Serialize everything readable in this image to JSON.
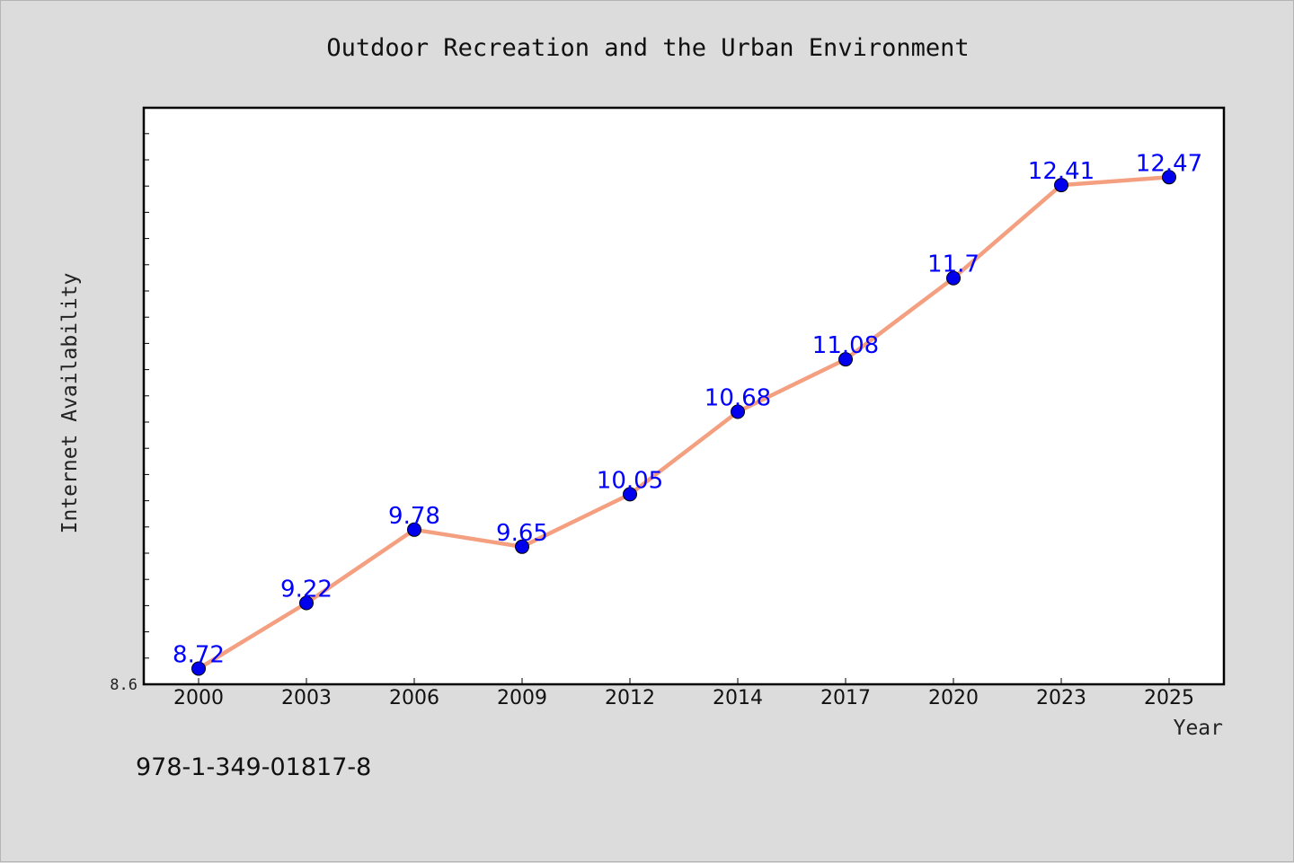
{
  "chart_data": {
    "type": "line",
    "title": "Outdoor Recreation and the Urban Environment",
    "xlabel": "Year",
    "ylabel": "Internet Availability",
    "categories": [
      "2000",
      "2003",
      "2006",
      "2009",
      "2012",
      "2014",
      "2017",
      "2020",
      "2023",
      "2025"
    ],
    "series": [
      {
        "values": [
          8.72,
          9.22,
          9.78,
          9.65,
          10.05,
          10.68,
          11.08,
          11.7,
          12.41,
          12.47
        ],
        "labels": [
          "8.72",
          "9.22",
          "9.78",
          "9.65",
          "10.05",
          "10.68",
          "11.08",
          "11.7",
          "12.41",
          "12.47"
        ],
        "line_color": "#f4a080",
        "marker_color": "#0000ee"
      }
    ],
    "ylim": [
      8.6,
      13.0
    ],
    "yticks_labeled": [
      "8.6"
    ],
    "grid": false,
    "legend": "none"
  },
  "footer": {
    "isbn": "978-1-349-01817-8"
  },
  "colors": {
    "background": "#dcdcdc",
    "plot_background": "#ffffff",
    "data_label": "#0000ff"
  }
}
